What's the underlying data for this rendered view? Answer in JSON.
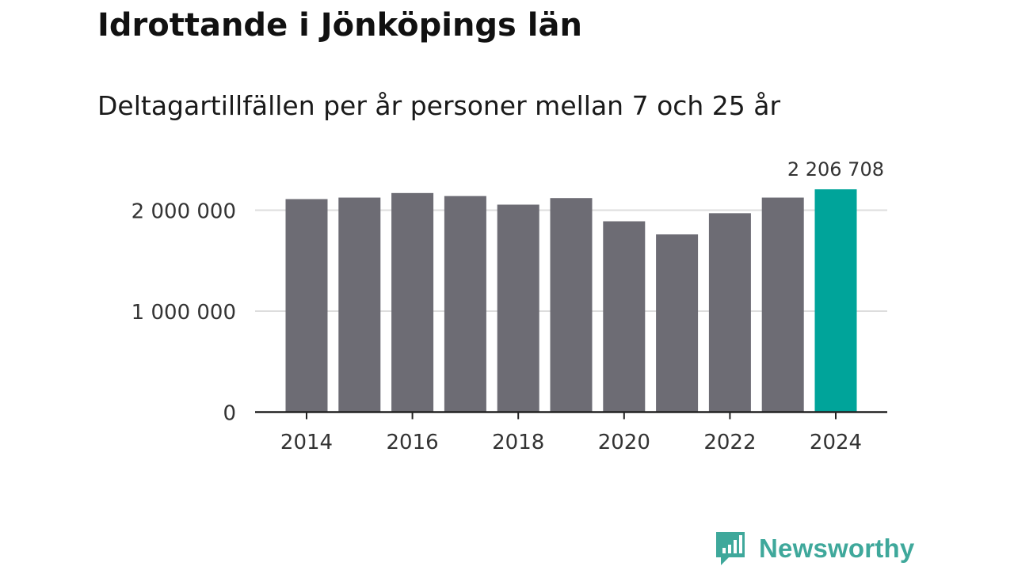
{
  "header": {
    "title": "Idrottande i Jönköpings län",
    "subtitle": "Deltagartillfällen per år personer mellan 7 och 25 år"
  },
  "brand": {
    "name": "Newsworthy",
    "color": "#3fa89b"
  },
  "colors": {
    "bar": "#6d6c74",
    "highlight": "#00a49a",
    "grid": "#dddddd",
    "axis": "#222222"
  },
  "chart_data": {
    "type": "bar",
    "title": "Idrottande i Jönköpings län",
    "subtitle": "Deltagartillfällen per år personer mellan 7 och 25 år",
    "xlabel": "",
    "ylabel": "",
    "categories": [
      "2014",
      "2015",
      "2016",
      "2017",
      "2018",
      "2019",
      "2020",
      "2021",
      "2022",
      "2023",
      "2024"
    ],
    "values": [
      2110000,
      2125000,
      2170000,
      2140000,
      2055000,
      2120000,
      1890000,
      1760000,
      1970000,
      2125000,
      2206708
    ],
    "highlight_index": 10,
    "ylim": [
      0,
      2350000
    ],
    "yticks": [
      0,
      1000000,
      2000000
    ],
    "ytick_labels": [
      "0",
      "1 000 000",
      "2 000 000"
    ],
    "xtick_labels": [
      "2014",
      "",
      "2016",
      "",
      "2018",
      "",
      "2020",
      "",
      "2022",
      "",
      "2024"
    ],
    "data_labels": [
      {
        "index": 10,
        "text": "2 206 708"
      }
    ],
    "grid": true,
    "legend": "none"
  }
}
